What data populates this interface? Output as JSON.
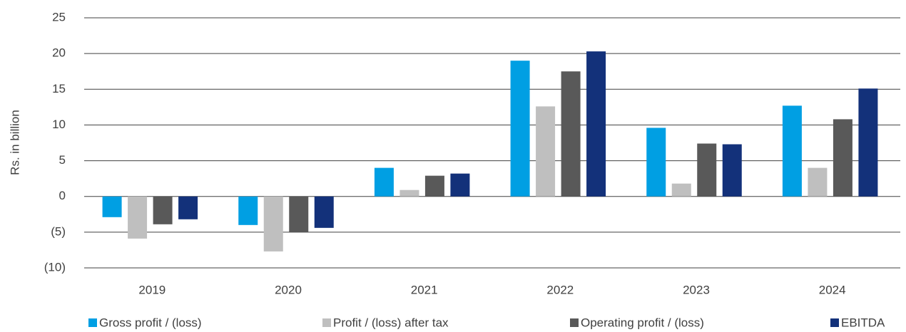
{
  "chart_data": {
    "type": "bar",
    "y_axis_label": "Rs. in billion",
    "categories": [
      "2019",
      "2020",
      "2021",
      "2022",
      "2023",
      "2024"
    ],
    "series": [
      {
        "name": "Gross profit / (loss)",
        "color": "#009fe3",
        "values": [
          -2.9,
          -4.0,
          4.0,
          19.0,
          9.6,
          12.7
        ]
      },
      {
        "name": "Profit / (loss) after tax",
        "color": "#bfbfbf",
        "values": [
          -5.9,
          -7.7,
          0.9,
          12.6,
          1.8,
          4.0
        ]
      },
      {
        "name": "Operating profit / (loss)",
        "color": "#595959",
        "values": [
          -3.9,
          -5.0,
          2.9,
          17.5,
          7.4,
          10.8
        ]
      },
      {
        "name": "EBITDA",
        "color": "#13317a",
        "values": [
          -3.2,
          -4.4,
          3.2,
          20.3,
          7.3,
          15.1
        ]
      }
    ],
    "ylim": [
      -10,
      25
    ],
    "yticks": [
      {
        "value": -10,
        "label": "(10)"
      },
      {
        "value": -5,
        "label": "(5)"
      },
      0,
      5,
      10,
      15,
      20,
      25
    ],
    "grid": true,
    "legend": "bottom"
  }
}
